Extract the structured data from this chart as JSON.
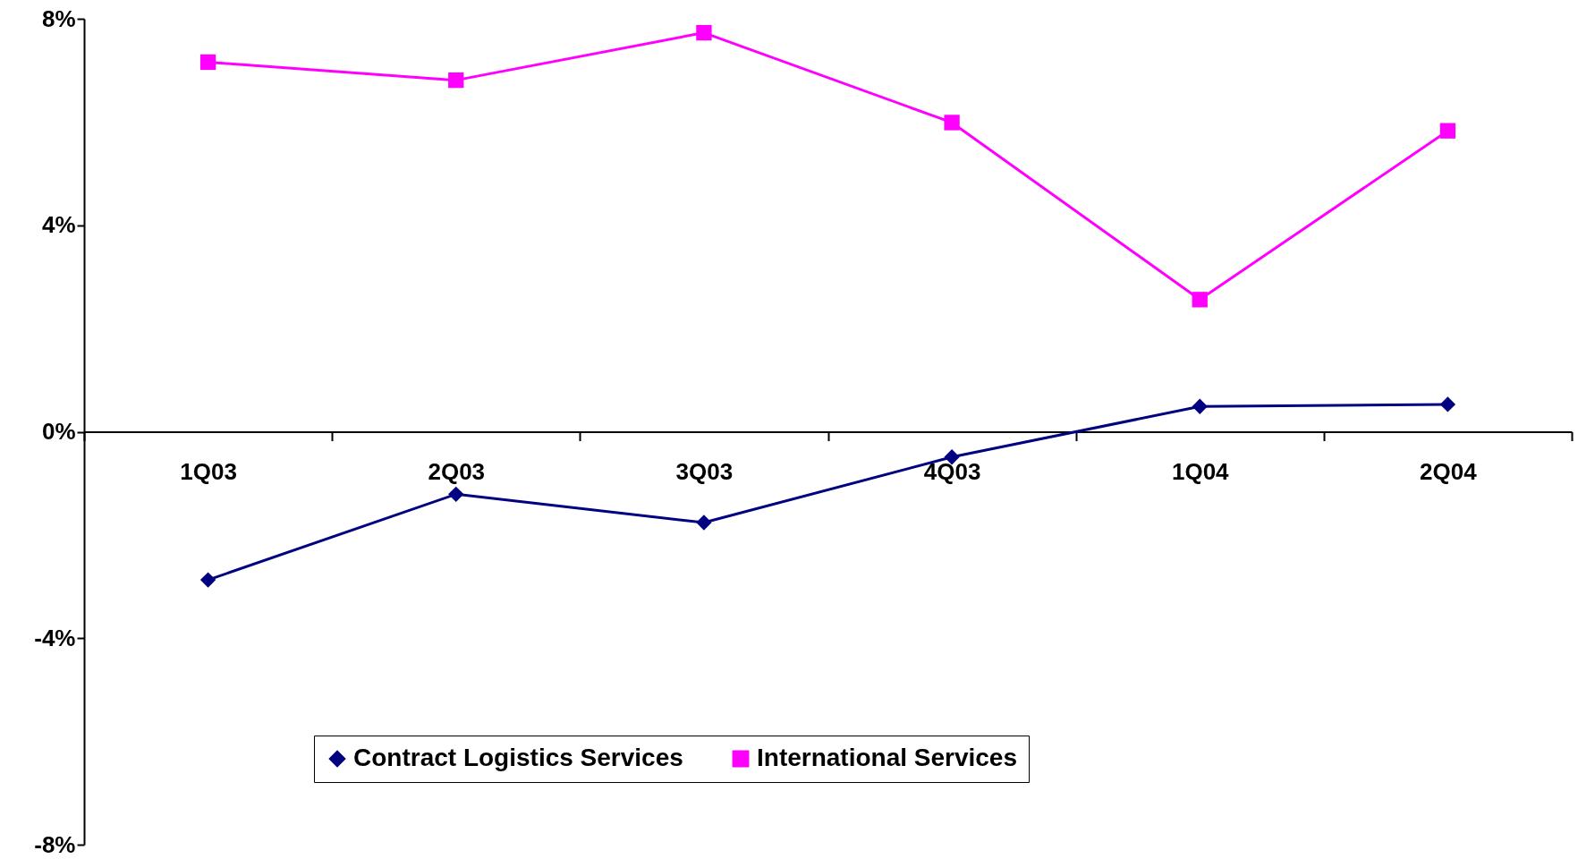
{
  "chart_data": {
    "type": "line",
    "categories": [
      "1Q03",
      "2Q03",
      "3Q03",
      "4Q03",
      "1Q04",
      "2Q04"
    ],
    "series": [
      {
        "name": "Contract Logistics Services",
        "color": "#000080",
        "marker": "diamond",
        "values": [
          -2.87,
          -1.21,
          -1.76,
          -0.49,
          0.49,
          0.53
        ]
      },
      {
        "name": "International Services",
        "color": "#ff00ff",
        "marker": "square",
        "values": [
          7.16,
          6.81,
          7.73,
          5.99,
          2.56,
          5.83
        ]
      }
    ],
    "ylim": [
      -8,
      8
    ],
    "yticks": [
      {
        "value": -8,
        "label": "-8%"
      },
      {
        "value": -4,
        "label": "-4%"
      },
      {
        "value": 0,
        "label": "0%"
      },
      {
        "value": 4,
        "label": "4%"
      },
      {
        "value": 8,
        "label": "8%"
      }
    ],
    "grid": false,
    "legend": "bottom",
    "line_style": "solid"
  }
}
